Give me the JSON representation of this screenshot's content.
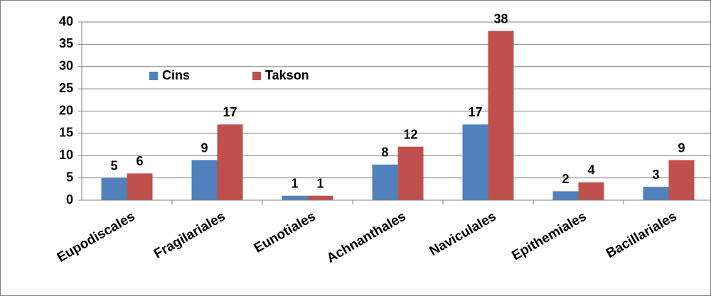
{
  "chart_data": {
    "type": "bar",
    "categories": [
      "Eupodiscales",
      "Fragilariales",
      "Eunotiales",
      "Achnanthales",
      "Naviculales",
      "Epithemiales",
      "Bacillariales"
    ],
    "series": [
      {
        "name": "Cins",
        "color": "#4f81bd",
        "values": [
          5,
          9,
          1,
          8,
          17,
          2,
          3
        ]
      },
      {
        "name": "Takson",
        "color": "#c0504d",
        "values": [
          6,
          17,
          1,
          12,
          38,
          4,
          9
        ]
      }
    ],
    "ylim": [
      0,
      40
    ],
    "yticks": [
      0,
      5,
      10,
      15,
      20,
      25,
      30,
      35,
      40
    ],
    "grid": true,
    "legend": "top-left"
  }
}
